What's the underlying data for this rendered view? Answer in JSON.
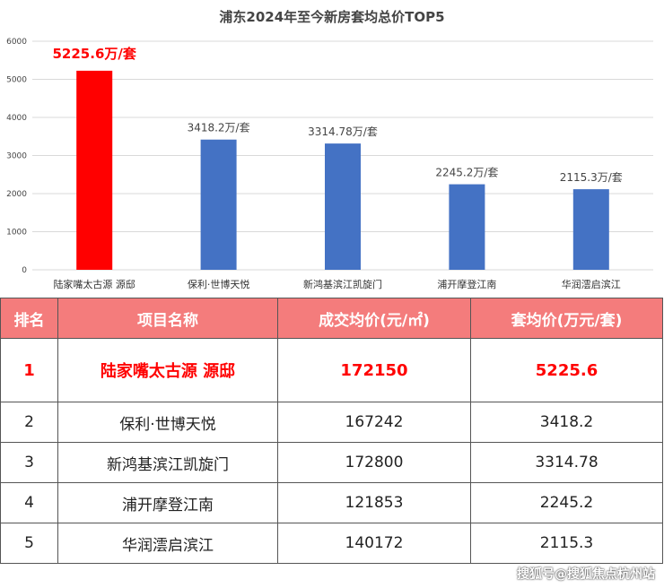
{
  "chart_data": {
    "type": "bar",
    "title": "浦东2024年至今新房套均总价TOP5",
    "categories": [
      "陆家嘴太古源 源邸",
      "保利·世博天悦",
      "新鸿基滨江凯旋门",
      "浦开摩登江南",
      "华润澐启滨江"
    ],
    "values": [
      5225.6,
      3418.2,
      3314.78,
      2245.2,
      2115.3
    ],
    "data_labels": [
      "5225.6万/套",
      "3418.2万/套",
      "3314.78万/套",
      "2245.2万/套",
      "2115.3万/套"
    ],
    "yticks": [
      "0",
      "1000",
      "2000",
      "3000",
      "4000",
      "5000",
      "6000"
    ],
    "ylim": [
      0,
      6000
    ],
    "grid": true,
    "colors": [
      "#ff0000",
      "#4472c4",
      "#4472c4",
      "#4472c4",
      "#4472c4"
    ]
  },
  "table": {
    "headers": [
      "排名",
      "项目名称",
      "成交均价(元/㎡)",
      "套均价(万元/套)"
    ],
    "rows": [
      [
        "1",
        "陆家嘴太古源 源邸",
        "172150",
        "5225.6"
      ],
      [
        "2",
        "保利·世博天悦",
        "167242",
        "3418.2"
      ],
      [
        "3",
        "新鸿基滨江凯旋门",
        "172800",
        "3314.78"
      ],
      [
        "4",
        "浦开摩登江南",
        "121853",
        "2245.2"
      ],
      [
        "5",
        "华润澐启滨江",
        "140172",
        "2115.3"
      ]
    ],
    "header_color": "#f47c7c",
    "highlight_color": "#ff0000"
  },
  "watermark": "搜狐号@搜狐焦点杭州站"
}
